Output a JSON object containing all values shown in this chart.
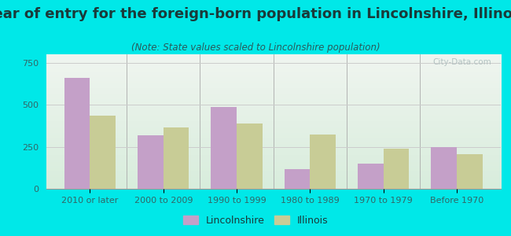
{
  "title": "Year of entry for the foreign-born population in Lincolnshire, Illinois",
  "subtitle": "(Note: State values scaled to Lincolnshire population)",
  "categories": [
    "2010 or later",
    "2000 to 2009",
    "1990 to 1999",
    "1980 to 1989",
    "1970 to 1979",
    "Before 1970"
  ],
  "lincolnshire_values": [
    660,
    320,
    485,
    115,
    150,
    250
  ],
  "illinois_values": [
    435,
    365,
    390,
    325,
    240,
    205
  ],
  "lincolnshire_color": "#c4a0c8",
  "illinois_color": "#c8cc96",
  "background_outer": "#00e8e8",
  "background_inner_top": "#f0f5f0",
  "background_inner_bottom": "#d8eddc",
  "ylim": [
    0,
    800
  ],
  "yticks": [
    0,
    250,
    500,
    750
  ],
  "bar_width": 0.35,
  "legend_lincolnshire": "Lincolnshire",
  "legend_illinois": "Illinois",
  "watermark": "City-Data.com",
  "title_fontsize": 13,
  "subtitle_fontsize": 8.5,
  "axis_fontsize": 8,
  "legend_fontsize": 9,
  "title_color": "#1a3a3a",
  "subtitle_color": "#2a5a5a",
  "tick_color": "#336666"
}
